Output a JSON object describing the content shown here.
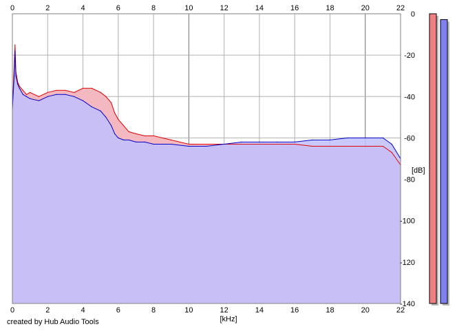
{
  "chart_data": {
    "type": "area",
    "xlabel": "[kHz]",
    "ylabel": "[dB]",
    "xlim": [
      0,
      22
    ],
    "ylim": [
      -140,
      0
    ],
    "x_ticks": [
      0,
      2,
      4,
      6,
      8,
      10,
      12,
      14,
      16,
      18,
      20,
      22
    ],
    "x_tick_labels": [
      "0",
      "2",
      "4",
      "6",
      "8",
      "10",
      "12",
      "14",
      "16",
      "18",
      "20",
      "22"
    ],
    "y_ticks": [
      0,
      -20,
      -40,
      -60,
      -80,
      -100,
      -120,
      -140
    ],
    "y_tick_labels": [
      "0",
      "-20",
      "-40",
      "-60",
      "-80",
      "-100",
      "-120",
      "-140"
    ],
    "grid": true,
    "series": [
      {
        "color": "#e00000",
        "fill": "#f4b8c0",
        "x": [
          0.0,
          0.1,
          0.15,
          0.2,
          0.3,
          0.4,
          0.6,
          0.8,
          1.0,
          1.5,
          2.0,
          2.5,
          3.0,
          3.5,
          4.0,
          4.5,
          5.0,
          5.3,
          5.6,
          5.8,
          6.0,
          6.3,
          6.6,
          7.0,
          7.5,
          8.0,
          9.0,
          10.0,
          11.0,
          12.0,
          13.0,
          14.0,
          15.0,
          16.0,
          17.0,
          18.0,
          19.0,
          20.0,
          21.0,
          21.5,
          22.0
        ],
        "values": [
          -46,
          -25,
          -15,
          -28,
          -33,
          -35,
          -37,
          -39,
          -38,
          -40,
          -38,
          -37,
          -37,
          -38,
          -36,
          -36,
          -38,
          -40,
          -43,
          -48,
          -51,
          -54,
          -57,
          -58,
          -59,
          -59,
          -61,
          -63,
          -63,
          -63,
          -63,
          -63,
          -63,
          -63,
          -64,
          -64,
          -64,
          -64,
          -64,
          -67,
          -73
        ]
      },
      {
        "color": "#0000c8",
        "fill": "#c0c0ff",
        "x": [
          0.0,
          0.1,
          0.15,
          0.2,
          0.3,
          0.4,
          0.6,
          0.8,
          1.0,
          1.5,
          2.0,
          2.5,
          3.0,
          3.5,
          4.0,
          4.5,
          5.0,
          5.3,
          5.6,
          5.8,
          6.0,
          6.3,
          6.6,
          7.0,
          7.5,
          8.0,
          9.0,
          10.0,
          11.0,
          12.0,
          13.0,
          14.0,
          15.0,
          16.0,
          17.0,
          18.0,
          19.0,
          20.0,
          21.0,
          21.5,
          22.0
        ],
        "values": [
          -46,
          -30,
          -18,
          -30,
          -34,
          -36,
          -39,
          -40,
          -41,
          -42,
          -40,
          -39,
          -39,
          -40,
          -42,
          -45,
          -47,
          -50,
          -54,
          -58,
          -60,
          -61,
          -61,
          -62,
          -62,
          -63,
          -63,
          -64,
          -64,
          -63,
          -62,
          -62,
          -62,
          -62,
          -61,
          -61,
          -60,
          -60,
          -60,
          -63,
          -70
        ]
      }
    ]
  },
  "level_meters": [
    {
      "color": "#f08080",
      "level": 1.0
    },
    {
      "color": "#8080f0",
      "level": 0.98
    }
  ],
  "credit": "created by Hub Audio Tools"
}
